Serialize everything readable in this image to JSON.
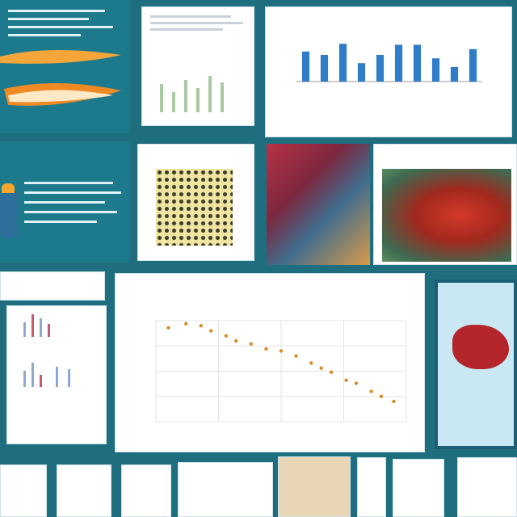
{
  "tiles": {
    "poster_top_left": {
      "accent": "#f08a24"
    },
    "bar_chart_top": {
      "title": "",
      "values": [
        62,
        55,
        78,
        38,
        55,
        76,
        76,
        48,
        30,
        67
      ],
      "accent": "#2f7cc8"
    },
    "mid_left_heading": {
      "text": ""
    },
    "mid_yellow_heading": {
      "text": ""
    },
    "mid_right_heading": {
      "text": ""
    },
    "bottom_left_heading": {
      "text": ""
    }
  },
  "main_chart": {
    "title_line1": "",
    "title_line2": "",
    "ylabel": "",
    "xlabel": "",
    "xticks": [
      "",
      "",
      "",
      "",
      ""
    ],
    "yticks": [
      "",
      "",
      "",
      "",
      ""
    ],
    "chart_data": {
      "type": "scatter",
      "points": [
        [
          0.05,
          0.93
        ],
        [
          0.12,
          0.97
        ],
        [
          0.18,
          0.95
        ],
        [
          0.22,
          0.9
        ],
        [
          0.28,
          0.85
        ],
        [
          0.32,
          0.8
        ],
        [
          0.38,
          0.77
        ],
        [
          0.44,
          0.72
        ],
        [
          0.5,
          0.7
        ],
        [
          0.56,
          0.65
        ],
        [
          0.62,
          0.58
        ],
        [
          0.66,
          0.53
        ],
        [
          0.7,
          0.49
        ],
        [
          0.76,
          0.41
        ],
        [
          0.8,
          0.38
        ],
        [
          0.86,
          0.3
        ],
        [
          0.9,
          0.25
        ],
        [
          0.95,
          0.2
        ]
      ],
      "color": "#d98c2a",
      "grid": true
    }
  }
}
